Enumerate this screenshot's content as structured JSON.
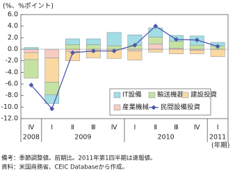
{
  "chart_data": {
    "type": "bar",
    "y_axis_label": "(%、%ポイント)",
    "x_axis_label": "(年期)",
    "categories": [
      "Ⅳ",
      "Ⅰ",
      "Ⅱ",
      "Ⅲ",
      "Ⅳ",
      "Ⅰ",
      "Ⅱ",
      "Ⅲ",
      "Ⅳ",
      "Ⅰ"
    ],
    "year_categories": [
      "2008",
      "2009",
      null,
      null,
      null,
      "2010",
      null,
      null,
      null,
      "2011"
    ],
    "series": [
      {
        "name": "IT設備",
        "type": "bar",
        "color": "#a3dde5",
        "values": [
          0.3,
          -1.5,
          1.0,
          1.0,
          2.3,
          1.8,
          1.6,
          1.0,
          1.6,
          0.6
        ]
      },
      {
        "name": "輸送機器",
        "type": "bar",
        "color": "#c6e2a3",
        "values": [
          -3.2,
          -2.2,
          0.8,
          0.8,
          0.6,
          0.7,
          1.2,
          1.2,
          0.7,
          0.6
        ]
      },
      {
        "name": "建設投資",
        "type": "bar",
        "color": "#fbd8a2",
        "values": [
          -1.2,
          -4.2,
          -1.6,
          -1.2,
          -1.6,
          -1.6,
          -0.5,
          -0.8,
          -0.6,
          -1.3
        ]
      },
      {
        "name": "産業機械",
        "type": "bar",
        "color": "#f8cbc3",
        "values": [
          -0.6,
          -1.5,
          -0.4,
          -0.3,
          0.0,
          -0.3,
          0.9,
          0.2,
          -0.2,
          0.0
        ]
      },
      {
        "name": "民間設備投資",
        "type": "line",
        "color": "#4d5aa8",
        "values": [
          -6.2,
          -10.3,
          -0.6,
          -0.3,
          -0.3,
          0.7,
          4.0,
          1.7,
          1.6,
          0.5
        ]
      }
    ],
    "ylim": [
      -12,
      6
    ],
    "yticks": [
      {
        "value": -12,
        "label": "-12.0"
      },
      {
        "value": -10,
        "label": "-10.0"
      },
      {
        "value": -8,
        "label": "-8.0"
      },
      {
        "value": -6,
        "label": "-6.0"
      },
      {
        "value": -4,
        "label": "-4.0"
      },
      {
        "value": -2,
        "label": "-2.0"
      },
      {
        "value": 0,
        "label": "0.0"
      },
      {
        "value": 2,
        "label": "2.0"
      },
      {
        "value": 4,
        "label": "4.0"
      },
      {
        "value": 6,
        "label": "6.0"
      }
    ],
    "grid": false,
    "legend_position": "lower right",
    "notes": [
      "備考：季節調整値。前期比。2011年第1四半期は速報値。",
      "資料：米国商務省、CEIC Databaseから作成。"
    ]
  }
}
